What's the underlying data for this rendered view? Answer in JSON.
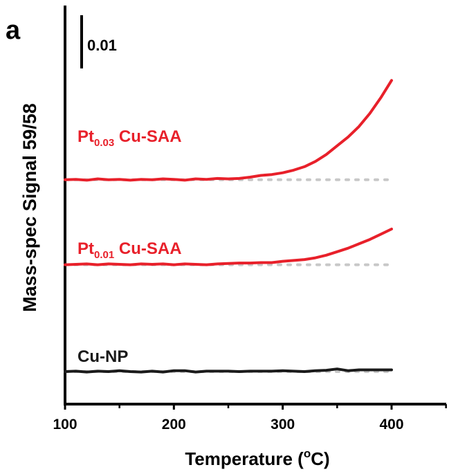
{
  "panel_label": "a",
  "chart_data": {
    "type": "line",
    "title": "",
    "xlabel": "Temperature (°C)",
    "xlabel_parts": {
      "main": "Temperature (",
      "sup": "o",
      "end": "C)"
    },
    "ylabel": "Mass-spec Signal 59/58",
    "xlim": [
      100,
      450
    ],
    "xticks": [
      100,
      200,
      300,
      400
    ],
    "yticks_shown": false,
    "scale_bar": {
      "label": "0.01",
      "value": 0.01
    },
    "grid": false,
    "legend": "none (curves labeled inline)",
    "offset_units": [
      0.0,
      0.0245,
      0.044
    ],
    "colors": {
      "red": "#e8202a",
      "black": "#1a1a1a",
      "baseline": "#c8c8c8"
    },
    "series": [
      {
        "label": {
          "main": "Pt",
          "sub": "0.03",
          "rest": " Cu-SAA"
        },
        "color": "#e8202a",
        "baseline_dotted": true,
        "x": [
          100,
          110,
          120,
          130,
          140,
          150,
          160,
          170,
          180,
          190,
          200,
          210,
          220,
          230,
          240,
          250,
          260,
          270,
          280,
          290,
          300,
          310,
          320,
          330,
          340,
          350,
          360,
          370,
          380,
          390,
          400
        ],
        "y": [
          0,
          0.0001,
          -0.0001,
          0.0002,
          0,
          0.0001,
          -0.0001,
          0.0001,
          0,
          0.0002,
          0.0001,
          -0.0001,
          0.0002,
          0.0001,
          0.0003,
          0.0002,
          0.0003,
          0.0006,
          0.001,
          0.0012,
          0.0016,
          0.0022,
          0.003,
          0.0042,
          0.0058,
          0.0078,
          0.0098,
          0.0122,
          0.0152,
          0.0188,
          0.0228
        ]
      },
      {
        "label": {
          "main": "Pt",
          "sub": "0.01",
          "rest": " Cu-SAA"
        },
        "color": "#e8202a",
        "baseline_dotted": true,
        "x": [
          100,
          110,
          120,
          130,
          140,
          150,
          160,
          170,
          180,
          190,
          200,
          210,
          220,
          230,
          240,
          250,
          260,
          270,
          280,
          290,
          300,
          310,
          320,
          330,
          340,
          350,
          360,
          370,
          380,
          390,
          400
        ],
        "y": [
          0,
          0.0001,
          0.0002,
          0,
          0.0002,
          0.0001,
          0,
          0.0002,
          0.0001,
          0.0002,
          0,
          0.0002,
          0.0001,
          0,
          0.0002,
          0.0003,
          0.0004,
          0.0004,
          0.0005,
          0.0005,
          0.0008,
          0.001,
          0.0012,
          0.0016,
          0.0022,
          0.003,
          0.0038,
          0.0048,
          0.0058,
          0.007,
          0.0082
        ]
      },
      {
        "label": {
          "main": "Cu-NP",
          "sub": "",
          "rest": ""
        },
        "color": "#1a1a1a",
        "baseline_dotted": true,
        "x": [
          100,
          110,
          120,
          130,
          140,
          150,
          160,
          170,
          180,
          190,
          200,
          210,
          220,
          230,
          240,
          250,
          260,
          270,
          280,
          290,
          300,
          310,
          320,
          330,
          340,
          350,
          360,
          370,
          380,
          390,
          400
        ],
        "y": [
          0,
          0.0001,
          -0.0001,
          0.0001,
          0,
          0.0002,
          0,
          -0.0001,
          0.0001,
          -0.0001,
          0.0002,
          0.0002,
          -0.0001,
          0.0001,
          0.0001,
          0.0001,
          0,
          0.0001,
          0.0001,
          0.0001,
          0.0002,
          0.0001,
          0,
          0.0002,
          0.0003,
          0.0006,
          0.0002,
          0.0004,
          0.0004,
          0.0004,
          0.0004
        ]
      }
    ]
  }
}
